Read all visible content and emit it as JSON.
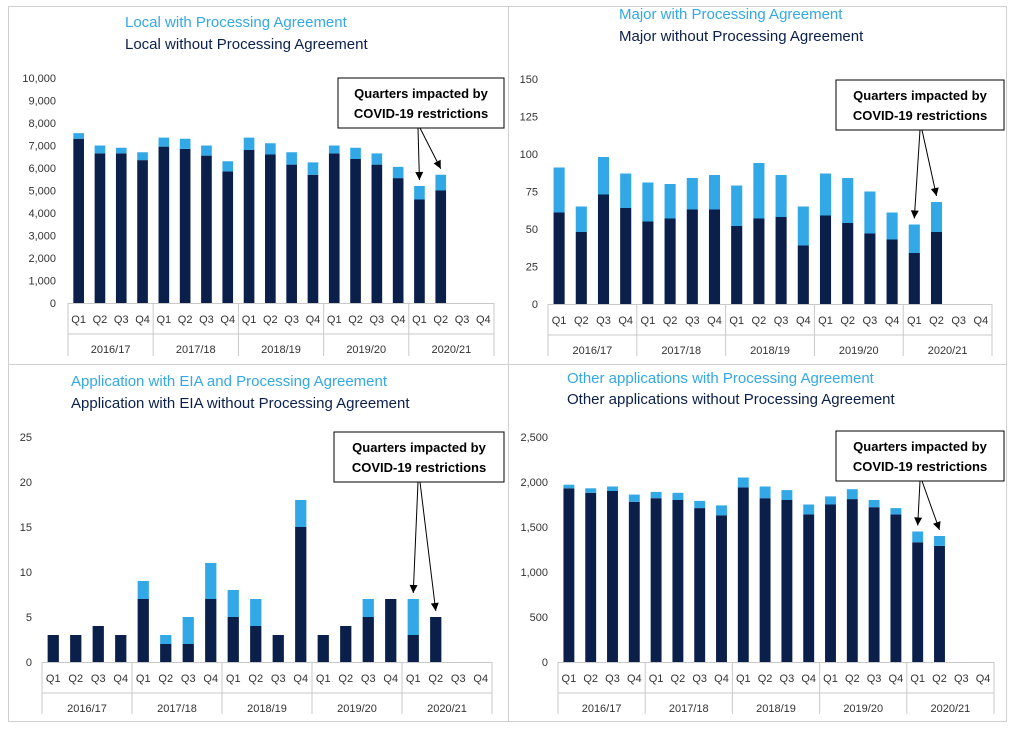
{
  "colors": {
    "with": "#33a8e6",
    "without": "#0b1f4b",
    "axis": "#7f7f7f",
    "grid": "#c9c9c9",
    "text": "#333333"
  },
  "quarter_labels": [
    "Q1",
    "Q2",
    "Q3",
    "Q4",
    "Q1",
    "Q2",
    "Q3",
    "Q4",
    "Q1",
    "Q2",
    "Q3",
    "Q4",
    "Q1",
    "Q2",
    "Q3",
    "Q4",
    "Q1",
    "Q2",
    "Q3",
    "Q4"
  ],
  "year_labels": [
    "2016/17",
    "2017/18",
    "2018/19",
    "2019/20",
    "2020/21"
  ],
  "chart_data": [
    {
      "id": "local",
      "type": "bar",
      "stacked": true,
      "title_with": "Local with Processing Agreement",
      "title_without": "Local without Processing Agreement",
      "callout": "Quarters impacted by\nCOVID-19 restrictions",
      "ylim": [
        0,
        10000
      ],
      "yticks": [
        0,
        1000,
        2000,
        3000,
        4000,
        5000,
        6000,
        7000,
        8000,
        9000,
        10000
      ],
      "ytick_labels": [
        "0",
        "1,000",
        "2,000",
        "3,000",
        "4,000",
        "5,000",
        "6,000",
        "7,000",
        "8,000",
        "9,000",
        "10,000"
      ],
      "series": [
        {
          "name": "without",
          "values": [
            7300,
            6650,
            6650,
            6350,
            6950,
            6850,
            6550,
            5850,
            6800,
            6600,
            6150,
            5700,
            6650,
            6400,
            6150,
            5550,
            4600,
            5000,
            null,
            null
          ]
        },
        {
          "name": "with",
          "values": [
            250,
            350,
            250,
            350,
            400,
            450,
            450,
            450,
            550,
            500,
            550,
            550,
            350,
            500,
            500,
            500,
            600,
            700,
            null,
            null
          ]
        }
      ],
      "covid_quarters": [
        16,
        17
      ]
    },
    {
      "id": "major",
      "type": "bar",
      "stacked": true,
      "title_with": "Major with Processing Agreement",
      "title_without": "Major without Processing Agreement",
      "callout": "Quarters impacted by\nCOVID-19 restrictions",
      "ylim": [
        0,
        150
      ],
      "yticks": [
        0,
        25,
        50,
        75,
        100,
        125,
        150
      ],
      "ytick_labels": [
        "0",
        "25",
        "50",
        "75",
        "100",
        "125",
        "150"
      ],
      "series": [
        {
          "name": "without",
          "values": [
            61,
            48,
            73,
            64,
            55,
            57,
            63,
            63,
            52,
            57,
            58,
            39,
            59,
            54,
            47,
            43,
            34,
            48,
            null,
            null
          ]
        },
        {
          "name": "with",
          "values": [
            30,
            17,
            25,
            23,
            26,
            23,
            21,
            23,
            27,
            37,
            28,
            26,
            28,
            30,
            28,
            18,
            19,
            20,
            null,
            null
          ]
        }
      ],
      "covid_quarters": [
        16,
        17
      ]
    },
    {
      "id": "eia",
      "type": "bar",
      "stacked": true,
      "title_with": "Application with EIA and Processing Agreement",
      "title_without": "Application with EIA without Processing Agreement",
      "callout": "Quarters impacted by\nCOVID-19 restrictions",
      "ylim": [
        0,
        25
      ],
      "yticks": [
        0,
        5,
        10,
        15,
        20,
        25
      ],
      "ytick_labels": [
        "0",
        "5",
        "10",
        "15",
        "20",
        "25"
      ],
      "series": [
        {
          "name": "without",
          "values": [
            3,
            3,
            4,
            3,
            7,
            2,
            2,
            7,
            5,
            4,
            3,
            15,
            3,
            4,
            5,
            7,
            3,
            5,
            null,
            null
          ]
        },
        {
          "name": "with",
          "values": [
            0,
            0,
            0,
            0,
            2,
            1,
            3,
            4,
            3,
            3,
            0,
            3,
            0,
            0,
            2,
            0,
            4,
            0,
            null,
            null
          ]
        }
      ],
      "covid_quarters": [
        16,
        17
      ]
    },
    {
      "id": "other",
      "type": "bar",
      "stacked": true,
      "title_with": "Other applications with Processing Agreement",
      "title_without": "Other applications without Processing Agreement",
      "callout": "Quarters impacted by\nCOVID-19 restrictions",
      "ylim": [
        0,
        2500
      ],
      "yticks": [
        0,
        500,
        1000,
        1500,
        2000,
        2500
      ],
      "ytick_labels": [
        "0",
        "500",
        "1,000",
        "1,500",
        "2,000",
        "2,500"
      ],
      "series": [
        {
          "name": "without",
          "values": [
            1930,
            1880,
            1900,
            1780,
            1820,
            1800,
            1710,
            1630,
            1940,
            1820,
            1800,
            1640,
            1750,
            1810,
            1720,
            1640,
            1330,
            1290,
            null,
            null
          ]
        },
        {
          "name": "with",
          "values": [
            40,
            50,
            50,
            80,
            70,
            80,
            80,
            110,
            110,
            130,
            110,
            110,
            90,
            110,
            80,
            70,
            120,
            110,
            null,
            null
          ]
        }
      ],
      "covid_quarters": [
        16,
        17
      ]
    }
  ]
}
